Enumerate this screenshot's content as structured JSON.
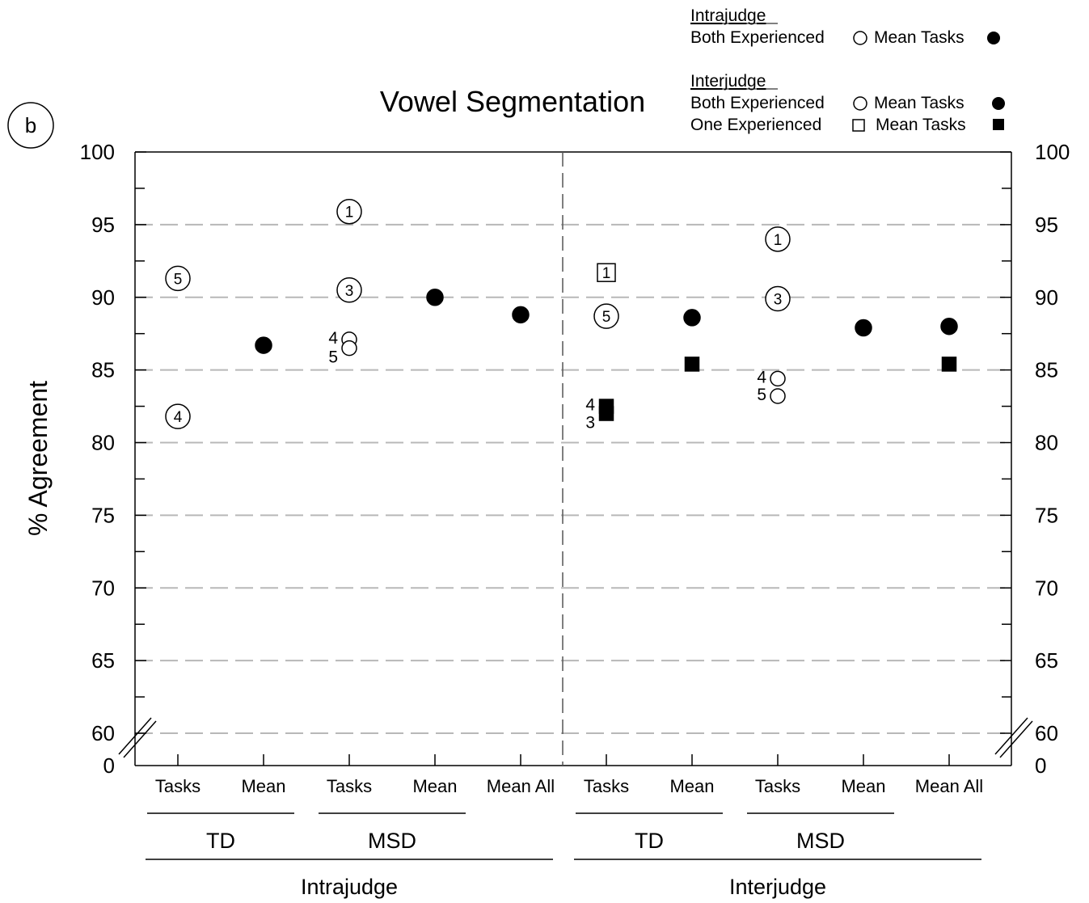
{
  "panel_label": "b",
  "chart_data": {
    "type": "scatter",
    "title": "Vowel Segmentation",
    "ylabel": "% Agreement",
    "ylim": [
      60,
      100
    ],
    "y_break": {
      "below": 60,
      "shown_as": 0
    },
    "yticks": [
      100,
      95,
      90,
      85,
      80,
      75,
      70,
      65,
      60
    ],
    "ytick_zero_label": "0",
    "y_minor_step": 2.5,
    "grid": "dashed horizontal at major ticks",
    "categories": [
      "Tasks",
      "Mean",
      "Tasks",
      "Mean",
      "Mean All",
      "Tasks",
      "Mean",
      "Tasks",
      "Mean",
      "Mean All"
    ],
    "group_labels": [
      {
        "label": "TD",
        "from": 0,
        "to": 1
      },
      {
        "label": "MSD",
        "from": 2,
        "to": 3
      },
      {
        "label": "TD",
        "from": 5,
        "to": 6
      },
      {
        "label": "MSD",
        "from": 7,
        "to": 8
      }
    ],
    "section_labels": [
      {
        "label": "Intrajudge",
        "from": 0,
        "to": 4
      },
      {
        "label": "Interjudge",
        "from": 5,
        "to": 9
      }
    ],
    "legend": {
      "position": "top-right",
      "sections": [
        {
          "heading": "Intrajudge",
          "rows": [
            {
              "label": "Both Experienced",
              "open_symbol": "circle",
              "mean_label": "Mean Tasks",
              "filled_symbol": "circle"
            }
          ]
        },
        {
          "heading": "Interjudge",
          "rows": [
            {
              "label": "Both Experienced",
              "open_symbol": "circle",
              "mean_label": "Mean Tasks",
              "filled_symbol": "circle"
            },
            {
              "label": "One Experienced",
              "open_symbol": "square",
              "mean_label": "Mean Tasks",
              "filled_symbol": "square"
            }
          ]
        }
      ]
    },
    "points": [
      {
        "cat": 0,
        "y": 91.3,
        "marker": "circle",
        "filled": false,
        "label": "5",
        "label_pos": "inside"
      },
      {
        "cat": 0,
        "y": 81.8,
        "marker": "circle",
        "filled": false,
        "label": "4",
        "label_pos": "inside"
      },
      {
        "cat": 1,
        "y": 86.7,
        "marker": "circle",
        "filled": true
      },
      {
        "cat": 2,
        "y": 95.9,
        "marker": "circle",
        "filled": false,
        "label": "1",
        "label_pos": "inside"
      },
      {
        "cat": 2,
        "y": 90.5,
        "marker": "circle",
        "filled": false,
        "label": "3",
        "label_pos": "inside"
      },
      {
        "cat": 2,
        "y": 87.1,
        "marker": "circle",
        "filled": false,
        "label": "4",
        "label_pos": "left"
      },
      {
        "cat": 2,
        "y": 86.5,
        "marker": "circle",
        "filled": false,
        "label": "5",
        "label_pos": "left-below"
      },
      {
        "cat": 3,
        "y": 90.0,
        "marker": "circle",
        "filled": true
      },
      {
        "cat": 4,
        "y": 88.8,
        "marker": "circle",
        "filled": true
      },
      {
        "cat": 5,
        "y": 91.7,
        "marker": "square",
        "filled": false,
        "label": "1",
        "label_pos": "inside"
      },
      {
        "cat": 5,
        "y": 88.7,
        "marker": "circle",
        "filled": false,
        "label": "5",
        "label_pos": "inside"
      },
      {
        "cat": 5,
        "y": 82.5,
        "marker": "square",
        "filled": true,
        "label": "4",
        "label_pos": "left"
      },
      {
        "cat": 5,
        "y": 82.0,
        "marker": "square",
        "filled": true,
        "label": "3",
        "label_pos": "left-below"
      },
      {
        "cat": 6,
        "y": 88.6,
        "marker": "circle",
        "filled": true
      },
      {
        "cat": 6,
        "y": 85.4,
        "marker": "square",
        "filled": true
      },
      {
        "cat": 7,
        "y": 94.0,
        "marker": "circle",
        "filled": false,
        "label": "1",
        "label_pos": "inside"
      },
      {
        "cat": 7,
        "y": 89.9,
        "marker": "circle",
        "filled": false,
        "label": "3",
        "label_pos": "inside"
      },
      {
        "cat": 7,
        "y": 84.4,
        "marker": "circle",
        "filled": false,
        "label": "4",
        "label_pos": "left"
      },
      {
        "cat": 7,
        "y": 83.2,
        "marker": "circle",
        "filled": false,
        "label": "5",
        "label_pos": "left"
      },
      {
        "cat": 8,
        "y": 87.9,
        "marker": "circle",
        "filled": true
      },
      {
        "cat": 9,
        "y": 88.0,
        "marker": "circle",
        "filled": true
      },
      {
        "cat": 9,
        "y": 85.4,
        "marker": "square",
        "filled": true
      }
    ]
  }
}
